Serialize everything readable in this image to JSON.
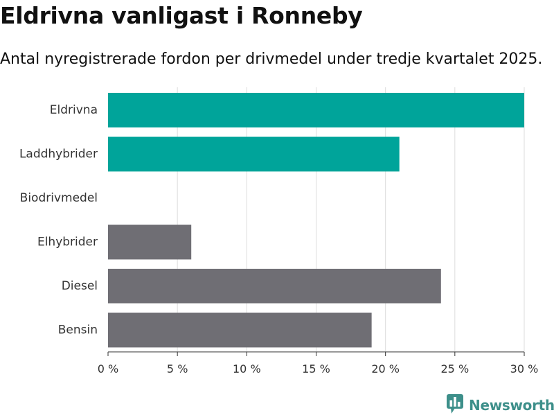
{
  "title": "Eldrivna vanligast i Ronneby",
  "subtitle": "Antal nyregistrerade fordon per drivmedel under tredje kvartalet 2025.",
  "chart_data": {
    "type": "bar",
    "orientation": "horizontal",
    "categories": [
      "Eldrivna",
      "Laddhybrider",
      "Biodrivmedel",
      "Elhybrider",
      "Diesel",
      "Bensin"
    ],
    "values": [
      30,
      21,
      0,
      6,
      24,
      19
    ],
    "colors": [
      "#00a49a",
      "#00a49a",
      "#00a49a",
      "#6f6e74",
      "#6f6e74",
      "#6f6e74"
    ],
    "xlim": [
      0,
      30
    ],
    "xticks": [
      0,
      5,
      10,
      15,
      20,
      25,
      30
    ],
    "xtick_labels": [
      "0 %",
      "5 %",
      "10 %",
      "15 %",
      "20 %",
      "25 %",
      "30 %"
    ],
    "grid": true,
    "legend": "none"
  },
  "brand": {
    "name": "Newsworthy",
    "icon": "newsworthy-logo-icon",
    "color": "#3d8f8a"
  }
}
